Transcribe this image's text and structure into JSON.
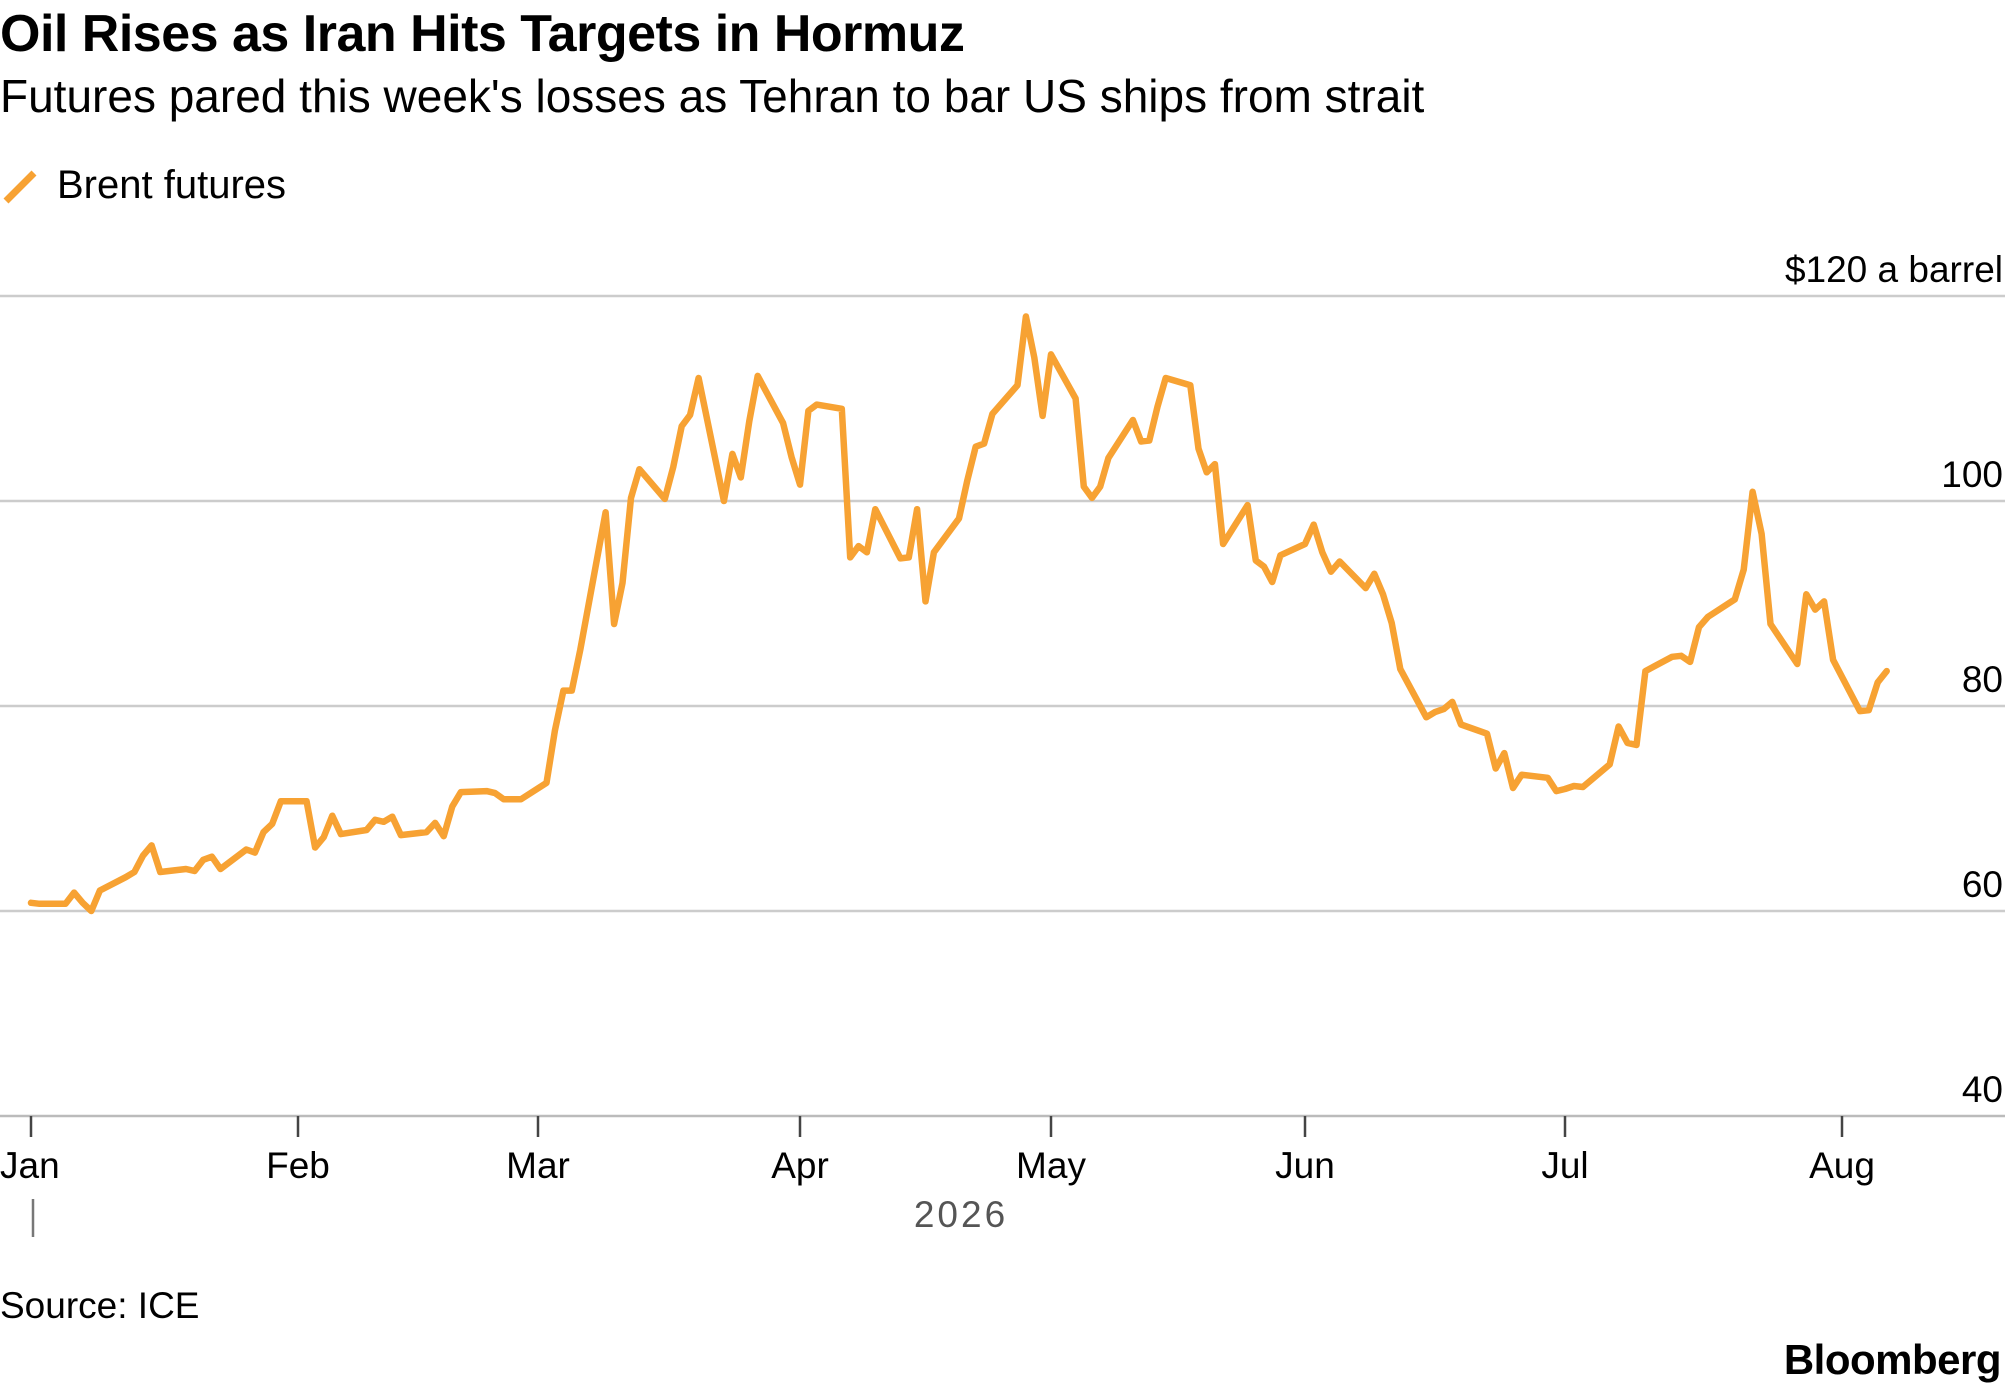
{
  "header": {
    "title": "Oil Rises as Iran Hits Targets in Hormuz",
    "subtitle": "Futures pared this week's losses as Tehran to bar US ships from strait"
  },
  "legend": {
    "label": "Brent futures"
  },
  "footer": {
    "source": "Source: ICE",
    "brand": "Bloomberg"
  },
  "colors": {
    "series": "#f7a233",
    "grid": "#cccccc",
    "axis": "#bbbbbb",
    "text": "#000000",
    "year_text": "#555555"
  },
  "chart_data": {
    "type": "line",
    "title": "Oil Rises as Iran Hits Targets in Hormuz",
    "subtitle": "Futures pared this week's losses as Tehran to bar US ships from strait",
    "ylabel": "$120 a barrel",
    "ylim": [
      40,
      120
    ],
    "yticks": [
      40,
      60,
      80,
      100,
      120
    ],
    "ytick_labels": [
      "40",
      "60",
      "80",
      "100",
      "$120 a barrel"
    ],
    "xticks": [
      "2026-01-01",
      "2026-02-01",
      "2026-03-01",
      "2026-04-01",
      "2026-05-01",
      "2026-06-01",
      "2026-07-01",
      "2026-08-01"
    ],
    "xtick_labels": [
      "Jan",
      "Feb",
      "Mar",
      "Apr",
      "May",
      "Jun",
      "Jul",
      "Aug"
    ],
    "xlim": [
      "2026-01-01",
      "2026-09-01"
    ],
    "year_label": "2026",
    "grid": true,
    "legend_position": "top-left",
    "series": [
      {
        "name": "Brent futures",
        "color": "#f7a233",
        "points": [
          [
            "2026-01-01",
            60.8
          ],
          [
            "2026-01-02",
            60.7
          ],
          [
            "2026-01-05",
            60.7
          ],
          [
            "2026-01-06",
            61.8
          ],
          [
            "2026-01-07",
            60.8
          ],
          [
            "2026-01-08",
            60.0
          ],
          [
            "2026-01-09",
            62.0
          ],
          [
            "2026-01-12",
            63.3
          ],
          [
            "2026-01-13",
            63.8
          ],
          [
            "2026-01-14",
            65.4
          ],
          [
            "2026-01-15",
            66.4
          ],
          [
            "2026-01-16",
            63.8
          ],
          [
            "2026-01-19",
            64.1
          ],
          [
            "2026-01-20",
            63.9
          ],
          [
            "2026-01-21",
            65.0
          ],
          [
            "2026-01-22",
            65.3
          ],
          [
            "2026-01-23",
            64.1
          ],
          [
            "2026-01-26",
            66.0
          ],
          [
            "2026-01-27",
            65.7
          ],
          [
            "2026-01-28",
            67.7
          ],
          [
            "2026-01-29",
            68.5
          ],
          [
            "2026-01-30",
            70.7
          ],
          [
            "2026-02-02",
            70.7
          ],
          [
            "2026-02-03",
            66.2
          ],
          [
            "2026-02-04",
            67.2
          ],
          [
            "2026-02-05",
            69.3
          ],
          [
            "2026-02-06",
            67.5
          ],
          [
            "2026-02-09",
            67.9
          ],
          [
            "2026-02-10",
            68.9
          ],
          [
            "2026-02-11",
            68.7
          ],
          [
            "2026-02-12",
            69.2
          ],
          [
            "2026-02-13",
            67.4
          ],
          [
            "2026-02-16",
            67.7
          ],
          [
            "2026-02-17",
            68.6
          ],
          [
            "2026-02-18",
            67.3
          ],
          [
            "2026-02-19",
            70.2
          ],
          [
            "2026-02-20",
            71.6
          ],
          [
            "2026-02-23",
            71.7
          ],
          [
            "2026-02-24",
            71.5
          ],
          [
            "2026-02-25",
            70.9
          ],
          [
            "2026-02-26",
            70.9
          ],
          [
            "2026-02-27",
            70.9
          ],
          [
            "2026-03-02",
            72.5
          ],
          [
            "2026-03-03",
            77.6
          ],
          [
            "2026-03-04",
            81.5
          ],
          [
            "2026-03-05",
            81.5
          ],
          [
            "2026-03-06",
            85.5
          ],
          [
            "2026-03-09",
            98.9
          ],
          [
            "2026-03-10",
            88.0
          ],
          [
            "2026-03-11",
            92.0
          ],
          [
            "2026-03-12",
            100.3
          ],
          [
            "2026-03-13",
            103.1
          ],
          [
            "2026-03-16",
            100.2
          ],
          [
            "2026-03-17",
            103.3
          ],
          [
            "2026-03-18",
            107.3
          ],
          [
            "2026-03-19",
            108.4
          ],
          [
            "2026-03-20",
            112.0
          ],
          [
            "2026-03-23",
            100.0
          ],
          [
            "2026-03-24",
            104.6
          ],
          [
            "2026-03-25",
            102.3
          ],
          [
            "2026-03-26",
            107.8
          ],
          [
            "2026-03-27",
            112.2
          ],
          [
            "2026-03-30",
            107.6
          ],
          [
            "2026-03-31",
            104.3
          ],
          [
            "2026-04-01",
            101.6
          ],
          [
            "2026-04-02",
            108.8
          ],
          [
            "2026-04-03",
            109.4
          ],
          [
            "2026-04-06",
            109.0
          ],
          [
            "2026-04-07",
            94.5
          ],
          [
            "2026-04-08",
            95.6
          ],
          [
            "2026-04-09",
            95.0
          ],
          [
            "2026-04-10",
            99.2
          ],
          [
            "2026-04-13",
            94.4
          ],
          [
            "2026-04-14",
            94.5
          ],
          [
            "2026-04-15",
            99.2
          ],
          [
            "2026-04-16",
            90.2
          ],
          [
            "2026-04-17",
            95.0
          ],
          [
            "2026-04-20",
            98.3
          ],
          [
            "2026-04-21",
            102.0
          ],
          [
            "2026-04-22",
            105.3
          ],
          [
            "2026-04-23",
            105.6
          ],
          [
            "2026-04-24",
            108.5
          ],
          [
            "2026-04-27",
            111.3
          ],
          [
            "2026-04-28",
            118.0
          ],
          [
            "2026-04-29",
            114.0
          ],
          [
            "2026-04-30",
            108.3
          ],
          [
            "2026-05-01",
            114.3
          ],
          [
            "2026-05-04",
            110.0
          ],
          [
            "2026-05-05",
            101.4
          ],
          [
            "2026-05-06",
            100.3
          ],
          [
            "2026-05-07",
            101.4
          ],
          [
            "2026-05-08",
            104.2
          ],
          [
            "2026-05-11",
            107.9
          ],
          [
            "2026-05-12",
            105.8
          ],
          [
            "2026-05-13",
            105.9
          ],
          [
            "2026-05-14",
            109.2
          ],
          [
            "2026-05-15",
            112.0
          ],
          [
            "2026-05-18",
            111.3
          ],
          [
            "2026-05-19",
            105.1
          ],
          [
            "2026-05-20",
            102.8
          ],
          [
            "2026-05-21",
            103.6
          ],
          [
            "2026-05-22",
            95.8
          ],
          [
            "2026-05-25",
            99.6
          ],
          [
            "2026-05-26",
            94.2
          ],
          [
            "2026-05-27",
            93.6
          ],
          [
            "2026-05-28",
            92.1
          ],
          [
            "2026-05-29",
            94.7
          ],
          [
            "2026-06-01",
            95.8
          ],
          [
            "2026-06-02",
            97.7
          ],
          [
            "2026-06-03",
            95.0
          ],
          [
            "2026-06-04",
            93.1
          ],
          [
            "2026-06-05",
            94.1
          ],
          [
            "2026-06-08",
            91.5
          ],
          [
            "2026-06-09",
            92.9
          ],
          [
            "2026-06-10",
            90.9
          ],
          [
            "2026-06-11",
            88.1
          ],
          [
            "2026-06-12",
            83.6
          ],
          [
            "2026-06-15",
            78.9
          ],
          [
            "2026-06-16",
            79.4
          ],
          [
            "2026-06-17",
            79.7
          ],
          [
            "2026-06-18",
            80.4
          ],
          [
            "2026-06-19",
            78.2
          ],
          [
            "2026-06-22",
            77.3
          ],
          [
            "2026-06-23",
            73.9
          ],
          [
            "2026-06-24",
            75.4
          ],
          [
            "2026-06-25",
            72.0
          ],
          [
            "2026-06-26",
            73.3
          ],
          [
            "2026-06-29",
            73.0
          ],
          [
            "2026-06-30",
            71.7
          ],
          [
            "2026-07-01",
            71.9
          ],
          [
            "2026-07-02",
            72.2
          ],
          [
            "2026-07-03",
            72.1
          ],
          [
            "2026-07-06",
            74.3
          ],
          [
            "2026-07-07",
            78.0
          ],
          [
            "2026-07-08",
            76.4
          ],
          [
            "2026-07-09",
            76.2
          ],
          [
            "2026-07-10",
            83.4
          ],
          [
            "2026-07-13",
            84.8
          ],
          [
            "2026-07-14",
            84.9
          ],
          [
            "2026-07-15",
            84.3
          ],
          [
            "2026-07-16",
            87.7
          ],
          [
            "2026-07-17",
            88.7
          ],
          [
            "2026-07-20",
            90.4
          ],
          [
            "2026-07-21",
            93.3
          ],
          [
            "2026-07-22",
            100.9
          ],
          [
            "2026-07-23",
            96.8
          ],
          [
            "2026-07-24",
            88.0
          ],
          [
            "2026-07-27",
            84.1
          ],
          [
            "2026-07-28",
            90.9
          ],
          [
            "2026-07-29",
            89.4
          ],
          [
            "2026-07-30",
            90.2
          ],
          [
            "2026-07-31",
            84.5
          ],
          [
            "2026-08-03",
            79.5
          ],
          [
            "2026-08-04",
            79.6
          ],
          [
            "2026-08-05",
            82.3
          ],
          [
            "2026-08-06",
            83.4
          ]
        ]
      }
    ]
  }
}
